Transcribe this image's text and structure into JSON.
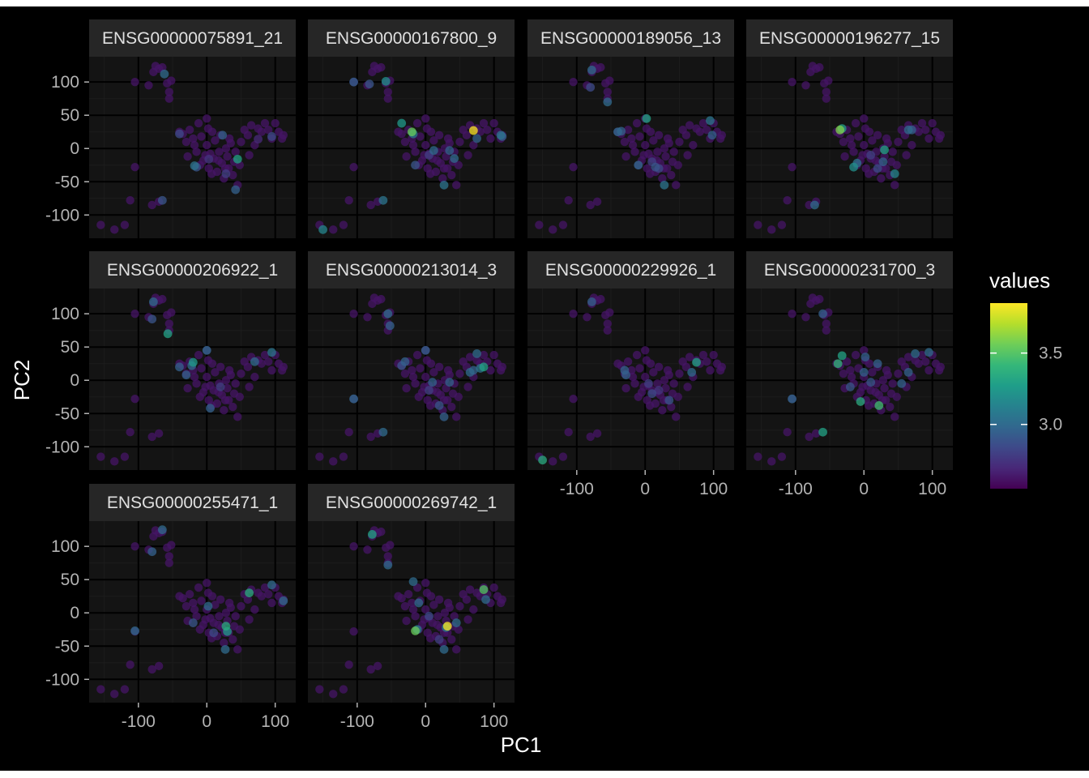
{
  "chart_data": {
    "type": "scatter",
    "facet_layout": "wrap",
    "facet_cols": 4,
    "xlabel": "PC1",
    "ylabel": "PC2",
    "xlim": [
      -172,
      130
    ],
    "ylim": [
      -135,
      138
    ],
    "x_ticks": [
      -100,
      0,
      100
    ],
    "x_tick_labels": [
      "-100",
      "0",
      "100"
    ],
    "y_ticks": [
      -100,
      -50,
      0,
      50,
      100
    ],
    "y_tick_labels": [
      "-100",
      "-50",
      "0",
      "50",
      "100"
    ],
    "grid": true,
    "legend": {
      "title": "values",
      "position": "right",
      "palette": "viridis",
      "range": [
        2.55,
        3.85
      ],
      "ticks": [
        3.0,
        3.5
      ],
      "tick_labels": [
        "3.0",
        "3.5"
      ]
    },
    "colors": {
      "background": "#000000",
      "panel": "#141414",
      "strip": "#262626",
      "strip_text": "#e0e0e0",
      "axis_text": "#b3b3b3",
      "title_text": "#ffffff",
      "grid_major": "#000000",
      "grid_minor": "#1c1c1c"
    },
    "panels": [
      {
        "title": "ENSG00000075891_21",
        "points": [
          {
            "x": -62,
            "y": 112,
            "v": 3.0
          },
          {
            "x": -65,
            "y": -78,
            "v": 2.9
          },
          {
            "x": 23,
            "y": 20,
            "v": 2.95
          },
          {
            "x": -40,
            "y": 22,
            "v": 2.85
          },
          {
            "x": 45,
            "y": -16,
            "v": 3.3
          },
          {
            "x": 42,
            "y": -62,
            "v": 2.95
          },
          {
            "x": -18,
            "y": -26,
            "v": 3.05
          },
          {
            "x": 95,
            "y": 18,
            "v": 2.85
          },
          {
            "x": 3,
            "y": -16,
            "v": 2.75
          },
          {
            "x": 28,
            "y": -38,
            "v": 2.8
          },
          {
            "x": 75,
            "y": 14,
            "v": 2.7
          },
          {
            "x": -15,
            "y": -28,
            "v": 2.9
          }
        ]
      },
      {
        "title": "ENSG00000167800_9",
        "points": [
          {
            "x": -105,
            "y": 100,
            "v": 2.95
          },
          {
            "x": -82,
            "y": 97,
            "v": 2.9
          },
          {
            "x": -58,
            "y": 101,
            "v": 3.2
          },
          {
            "x": 70,
            "y": 27,
            "v": 3.85
          },
          {
            "x": -35,
            "y": 38,
            "v": 3.25
          },
          {
            "x": -20,
            "y": 25,
            "v": 3.55
          },
          {
            "x": -18,
            "y": 22,
            "v": 3.1
          },
          {
            "x": 110,
            "y": 20,
            "v": 3.05
          },
          {
            "x": 112,
            "y": 18,
            "v": 2.95
          },
          {
            "x": -150,
            "y": -122,
            "v": 3.15
          },
          {
            "x": -62,
            "y": -78,
            "v": 3.05
          },
          {
            "x": 27,
            "y": -55,
            "v": 3.05
          },
          {
            "x": 12,
            "y": -3,
            "v": 3.0
          },
          {
            "x": 35,
            "y": -3,
            "v": 2.95
          },
          {
            "x": 42,
            "y": -15,
            "v": 3.0
          },
          {
            "x": -15,
            "y": -25,
            "v": 2.9
          },
          {
            "x": 75,
            "y": 15,
            "v": 2.95
          },
          {
            "x": 5,
            "y": -10,
            "v": 2.8
          }
        ]
      },
      {
        "title": "ENSG00000189056_13",
        "points": [
          {
            "x": -78,
            "y": 118,
            "v": 3.0
          },
          {
            "x": -80,
            "y": 92,
            "v": 2.85
          },
          {
            "x": -55,
            "y": 70,
            "v": 3.0
          },
          {
            "x": 2,
            "y": 45,
            "v": 3.3
          },
          {
            "x": -40,
            "y": 25,
            "v": 3.0
          },
          {
            "x": -35,
            "y": 26,
            "v": 2.95
          },
          {
            "x": 95,
            "y": 42,
            "v": 3.05
          },
          {
            "x": 98,
            "y": 20,
            "v": 2.95
          },
          {
            "x": 28,
            "y": -55,
            "v": 3.05
          },
          {
            "x": -10,
            "y": -25,
            "v": 3.0
          },
          {
            "x": 15,
            "y": -28,
            "v": 2.9
          },
          {
            "x": 20,
            "y": -30,
            "v": 2.85
          },
          {
            "x": 10,
            "y": -20,
            "v": 2.8
          }
        ]
      },
      {
        "title": "ENSG00000196277_15",
        "points": [
          {
            "x": -35,
            "y": 28,
            "v": 3.6
          },
          {
            "x": -32,
            "y": 30,
            "v": 3.3
          },
          {
            "x": 65,
            "y": 28,
            "v": 3.0
          },
          {
            "x": 70,
            "y": 28,
            "v": 2.95
          },
          {
            "x": 30,
            "y": -2,
            "v": 3.3
          },
          {
            "x": -15,
            "y": -28,
            "v": 3.2
          },
          {
            "x": -10,
            "y": -22,
            "v": 3.05
          },
          {
            "x": -72,
            "y": -85,
            "v": 3.0
          },
          {
            "x": 45,
            "y": -38,
            "v": 3.15
          },
          {
            "x": 28,
            "y": -20,
            "v": 2.95
          },
          {
            "x": 20,
            "y": -30,
            "v": 2.85
          },
          {
            "x": 10,
            "y": -10,
            "v": 2.8
          }
        ]
      },
      {
        "title": "ENSG00000206922_1",
        "points": [
          {
            "x": -78,
            "y": 118,
            "v": 3.0
          },
          {
            "x": -80,
            "y": 92,
            "v": 2.9
          },
          {
            "x": -57,
            "y": 70,
            "v": 3.3
          },
          {
            "x": 0,
            "y": 45,
            "v": 3.0
          },
          {
            "x": -20,
            "y": 27,
            "v": 3.25
          },
          {
            "x": -22,
            "y": 22,
            "v": 3.0
          },
          {
            "x": -40,
            "y": 20,
            "v": 2.95
          },
          {
            "x": -30,
            "y": 8,
            "v": 2.95
          },
          {
            "x": 95,
            "y": 42,
            "v": 3.05
          },
          {
            "x": 70,
            "y": 28,
            "v": 3.0
          },
          {
            "x": 5,
            "y": -42,
            "v": 2.95
          },
          {
            "x": 20,
            "y": -10,
            "v": 2.8
          }
        ]
      },
      {
        "title": "ENSG00000213014_3",
        "points": [
          {
            "x": -55,
            "y": 100,
            "v": 3.0
          },
          {
            "x": -52,
            "y": 82,
            "v": 2.95
          },
          {
            "x": 0,
            "y": 45,
            "v": 2.95
          },
          {
            "x": -30,
            "y": 28,
            "v": 2.95
          },
          {
            "x": -35,
            "y": 22,
            "v": 2.9
          },
          {
            "x": 75,
            "y": 40,
            "v": 3.0
          },
          {
            "x": 85,
            "y": 20,
            "v": 3.3
          },
          {
            "x": 80,
            "y": 18,
            "v": 3.05
          },
          {
            "x": 65,
            "y": 12,
            "v": 3.0
          },
          {
            "x": 70,
            "y": 15,
            "v": 2.95
          },
          {
            "x": -105,
            "y": -28,
            "v": 3.0
          },
          {
            "x": -62,
            "y": -78,
            "v": 3.0
          },
          {
            "x": 27,
            "y": -55,
            "v": 2.95
          },
          {
            "x": 10,
            "y": -3,
            "v": 2.95
          },
          {
            "x": 35,
            "y": -3,
            "v": 2.95
          },
          {
            "x": 20,
            "y": -38,
            "v": 2.9
          },
          {
            "x": 5,
            "y": -15,
            "v": 2.8
          }
        ]
      },
      {
        "title": "ENSG00000229926_1",
        "points": [
          {
            "x": -78,
            "y": 118,
            "v": 2.95
          },
          {
            "x": 75,
            "y": 27,
            "v": 3.3
          },
          {
            "x": 68,
            "y": 12,
            "v": 3.0
          },
          {
            "x": -30,
            "y": 15,
            "v": 2.95
          },
          {
            "x": -28,
            "y": 8,
            "v": 2.95
          },
          {
            "x": 35,
            "y": -30,
            "v": 2.9
          },
          {
            "x": 10,
            "y": -20,
            "v": 2.85
          },
          {
            "x": -150,
            "y": -120,
            "v": 3.35
          },
          {
            "x": 5,
            "y": -5,
            "v": 2.8
          },
          {
            "x": 20,
            "y": -15,
            "v": 2.75
          }
        ]
      },
      {
        "title": "ENSG00000231700_3",
        "points": [
          {
            "x": -60,
            "y": 100,
            "v": 2.95
          },
          {
            "x": -38,
            "y": 25,
            "v": 3.4
          },
          {
            "x": -32,
            "y": 37,
            "v": 3.3
          },
          {
            "x": 2,
            "y": 35,
            "v": 2.95
          },
          {
            "x": 20,
            "y": 25,
            "v": 2.95
          },
          {
            "x": 75,
            "y": 40,
            "v": 3.0
          },
          {
            "x": 95,
            "y": 42,
            "v": 3.0
          },
          {
            "x": 65,
            "y": 12,
            "v": 2.95
          },
          {
            "x": 55,
            "y": -5,
            "v": 2.95
          },
          {
            "x": -105,
            "y": -28,
            "v": 3.0
          },
          {
            "x": -60,
            "y": -78,
            "v": 3.3
          },
          {
            "x": -5,
            "y": -32,
            "v": 3.35
          },
          {
            "x": 22,
            "y": -38,
            "v": 3.45
          },
          {
            "x": 0,
            "y": 12,
            "v": 2.95
          },
          {
            "x": 10,
            "y": -3,
            "v": 2.9
          },
          {
            "x": -20,
            "y": -10,
            "v": 2.9
          }
        ]
      },
      {
        "title": "ENSG00000255471_1",
        "points": [
          {
            "x": -65,
            "y": 125,
            "v": 3.0
          },
          {
            "x": -80,
            "y": 92,
            "v": 2.95
          },
          {
            "x": 62,
            "y": 30,
            "v": 3.35
          },
          {
            "x": 95,
            "y": 42,
            "v": 3.0
          },
          {
            "x": 112,
            "y": 18,
            "v": 3.0
          },
          {
            "x": -105,
            "y": -27,
            "v": 3.0
          },
          {
            "x": 28,
            "y": -20,
            "v": 3.35
          },
          {
            "x": 30,
            "y": -28,
            "v": 3.25
          },
          {
            "x": 27,
            "y": -55,
            "v": 3.0
          },
          {
            "x": 2,
            "y": 10,
            "v": 3.0
          },
          {
            "x": -20,
            "y": -15,
            "v": 2.9
          },
          {
            "x": 10,
            "y": -30,
            "v": 2.85
          }
        ]
      },
      {
        "title": "ENSG00000269742_1",
        "points": [
          {
            "x": -78,
            "y": 118,
            "v": 3.3
          },
          {
            "x": -55,
            "y": 72,
            "v": 3.0
          },
          {
            "x": -18,
            "y": 47,
            "v": 3.0
          },
          {
            "x": 32,
            "y": -20,
            "v": 3.85
          },
          {
            "x": 30,
            "y": -22,
            "v": 3.1
          },
          {
            "x": -15,
            "y": -27,
            "v": 3.55
          },
          {
            "x": -12,
            "y": -25,
            "v": 3.1
          },
          {
            "x": 85,
            "y": 35,
            "v": 3.5
          },
          {
            "x": 88,
            "y": 20,
            "v": 3.0
          },
          {
            "x": 45,
            "y": -15,
            "v": 3.0
          },
          {
            "x": -10,
            "y": 15,
            "v": 3.0
          },
          {
            "x": 27,
            "y": -55,
            "v": 3.0
          },
          {
            "x": 5,
            "y": -5,
            "v": 2.85
          },
          {
            "x": 20,
            "y": -40,
            "v": 2.8
          }
        ]
      }
    ],
    "background_points": [
      {
        "x": -105,
        "y": 100
      },
      {
        "x": -85,
        "y": 95
      },
      {
        "x": -78,
        "y": 115
      },
      {
        "x": -75,
        "y": 124
      },
      {
        "x": -70,
        "y": 120
      },
      {
        "x": -65,
        "y": 122
      },
      {
        "x": -58,
        "y": 98
      },
      {
        "x": -55,
        "y": 85
      },
      {
        "x": -55,
        "y": 75
      },
      {
        "x": -52,
        "y": 102
      },
      {
        "x": -155,
        "y": -115
      },
      {
        "x": -135,
        "y": -122
      },
      {
        "x": -120,
        "y": -115
      },
      {
        "x": -105,
        "y": -28
      },
      {
        "x": -112,
        "y": -78
      },
      {
        "x": -80,
        "y": -85
      },
      {
        "x": -70,
        "y": -80
      },
      {
        "x": -40,
        "y": 25
      },
      {
        "x": -35,
        "y": 22
      },
      {
        "x": -30,
        "y": 10
      },
      {
        "x": -25,
        "y": 28
      },
      {
        "x": -20,
        "y": 15
      },
      {
        "x": -15,
        "y": -5
      },
      {
        "x": -12,
        "y": 38
      },
      {
        "x": -8,
        "y": 18
      },
      {
        "x": -5,
        "y": -18
      },
      {
        "x": 0,
        "y": 45
      },
      {
        "x": 0,
        "y": 5
      },
      {
        "x": 3,
        "y": -30
      },
      {
        "x": 5,
        "y": -8
      },
      {
        "x": 8,
        "y": 25
      },
      {
        "x": 10,
        "y": -15
      },
      {
        "x": 12,
        "y": 12
      },
      {
        "x": 15,
        "y": -35
      },
      {
        "x": 18,
        "y": -5
      },
      {
        "x": 20,
        "y": 20
      },
      {
        "x": 22,
        "y": -22
      },
      {
        "x": 25,
        "y": -45
      },
      {
        "x": 28,
        "y": 0
      },
      {
        "x": 30,
        "y": -12
      },
      {
        "x": 32,
        "y": -30
      },
      {
        "x": 35,
        "y": 8
      },
      {
        "x": 38,
        "y": -40
      },
      {
        "x": 40,
        "y": -20
      },
      {
        "x": 42,
        "y": -5
      },
      {
        "x": 45,
        "y": -55
      },
      {
        "x": 50,
        "y": 10
      },
      {
        "x": 55,
        "y": 28
      },
      {
        "x": 60,
        "y": 20
      },
      {
        "x": 62,
        "y": -10
      },
      {
        "x": 65,
        "y": 35
      },
      {
        "x": 70,
        "y": 5
      },
      {
        "x": 75,
        "y": 30
      },
      {
        "x": 80,
        "y": 25
      },
      {
        "x": 85,
        "y": 38
      },
      {
        "x": 90,
        "y": 28
      },
      {
        "x": 95,
        "y": 15
      },
      {
        "x": 100,
        "y": 38
      },
      {
        "x": 105,
        "y": 25
      },
      {
        "x": 110,
        "y": 15
      },
      {
        "x": 112,
        "y": 20
      },
      {
        "x": -10,
        "y": -25
      },
      {
        "x": -2,
        "y": -10
      },
      {
        "x": 7,
        "y": -38
      },
      {
        "x": 17,
        "y": -18
      },
      {
        "x": 27,
        "y": -30
      },
      {
        "x": -28,
        "y": -12
      },
      {
        "x": -18,
        "y": 5
      },
      {
        "x": 2,
        "y": 30
      },
      {
        "x": 33,
        "y": 15
      },
      {
        "x": 48,
        "y": -25
      }
    ]
  }
}
